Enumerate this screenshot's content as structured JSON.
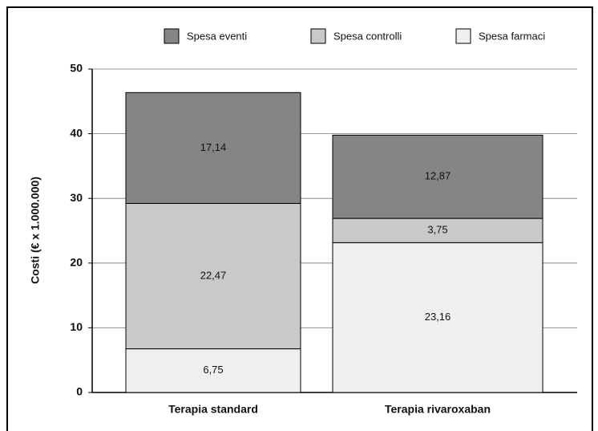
{
  "chart_data": {
    "type": "stacked-bar",
    "y_label": "Costi (€ x 1.000.000)",
    "categories": [
      "Terapia standard",
      "Terapia rivaroxaban"
    ],
    "series": [
      {
        "name": "Spesa eventi",
        "color": "#858585",
        "values": [
          17.14,
          12.87
        ],
        "value_labels": [
          "17,14",
          "12,87"
        ]
      },
      {
        "name": "Spesa controlli",
        "color": "#c9c9c9",
        "values": [
          22.47,
          3.75
        ],
        "value_labels": [
          "22,47",
          "3,75"
        ]
      },
      {
        "name": "Spesa farmaci",
        "color": "#efefef",
        "values": [
          6.75,
          23.16
        ],
        "value_labels": [
          "6,75",
          "23,16"
        ]
      }
    ],
    "stack_order": "last-series-at-bottom",
    "ylim": [
      0,
      50
    ],
    "yticks": [
      0,
      10,
      20,
      30,
      40,
      50
    ],
    "grid": true,
    "legend": "top"
  }
}
